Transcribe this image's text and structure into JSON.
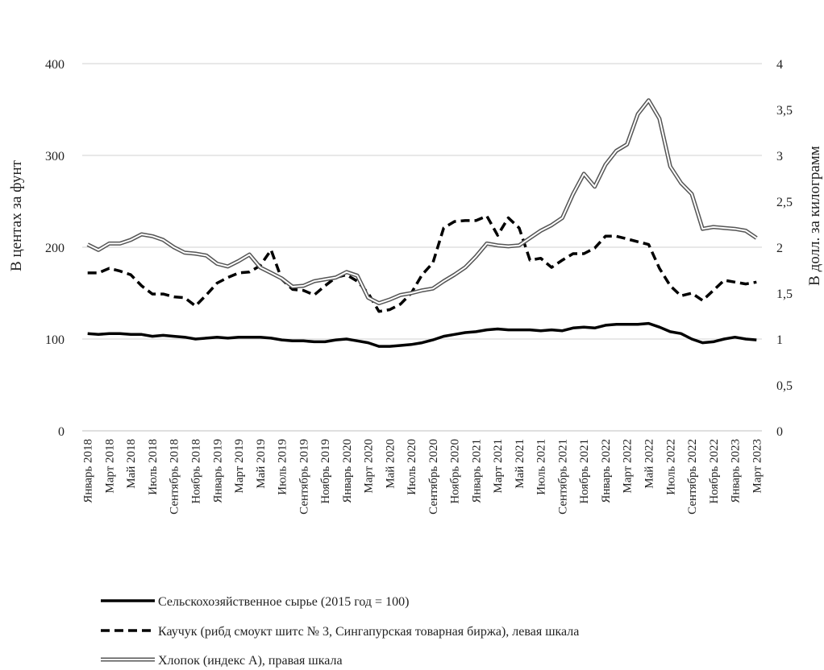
{
  "chart_data": {
    "type": "line",
    "xlabel": "",
    "ylabel": "В центах за фунт",
    "y2label": "В долл. за килограмм",
    "ylim": [
      0,
      400
    ],
    "y2lim": [
      0,
      4
    ],
    "grid": true,
    "legend_position": "bottom",
    "yticks": [
      "0",
      "100",
      "200",
      "300",
      "400"
    ],
    "y2ticks": [
      "0",
      "0,5",
      "1",
      "1,5",
      "2",
      "2,5",
      "3",
      "3,5",
      "4"
    ],
    "x": [
      "Январь 2018",
      "Февраль 2018",
      "Март 2018",
      "Апрель 2018",
      "Май 2018",
      "Июнь 2018",
      "Июль 2018",
      "Август 2018",
      "Сентябрь 2018",
      "Октябрь 2018",
      "Ноябрь 2018",
      "Декабрь 2018",
      "Январь 2019",
      "Февраль 2019",
      "Март 2019",
      "Апрель 2019",
      "Май 2019",
      "Июнь 2019",
      "Июль 2019",
      "Август 2019",
      "Сентябрь 2019",
      "Октябрь 2019",
      "Ноябрь 2019",
      "Декабрь 2019",
      "Январь 2020",
      "Февраль 2020",
      "Март 2020",
      "Апрель 2020",
      "Май 2020",
      "Июнь 2020",
      "Июль 2020",
      "Август 2020",
      "Сентябрь 2020",
      "Октябрь 2020",
      "Ноябрь 2020",
      "Декабрь 2020",
      "Январь 2021",
      "Февраль 2021",
      "Март 2021",
      "Апрель 2021",
      "Май 2021",
      "Июнь 2021",
      "Июль 2021",
      "Август 2021",
      "Сентябрь 2021",
      "Октябрь 2021",
      "Ноябрь 2021",
      "Декабрь 2021",
      "Январь 2022",
      "Февраль 2022",
      "Март 2022",
      "Апрель 2022",
      "Май 2022",
      "Июнь 2022",
      "Июль 2022",
      "Август 2022",
      "Сентябрь 2022",
      "Октябрь 2022",
      "Ноябрь 2022",
      "Декабрь 2022",
      "Январь 2023",
      "Февраль 2023",
      "Март 2023"
    ],
    "xtick_labels": [
      "Январь 2018",
      "Март 2018",
      "Май 2018",
      "Июль 2018",
      "Сентябрь 2018",
      "Ноябрь 2018",
      "Январь 2019",
      "Март 2019",
      "Май 2019",
      "Июль 2019",
      "Сентябрь 2019",
      "Ноябрь 2019",
      "Январь 2020",
      "Март 2020",
      "Май 2020",
      "Июль 2020",
      "Сентябрь 2020",
      "Ноябрь 2020",
      "Январь 2021",
      "Март 2021",
      "Май 2021",
      "Июль 2021",
      "Сентябрь 2021",
      "Ноябрь 2021",
      "Январь 2022",
      "Март 2022",
      "Май 2022",
      "Июль 2022",
      "Сентябрь 2022",
      "Ноябрь 2022",
      "Январь 2023",
      "Март 2023"
    ],
    "series": [
      {
        "name": "Сельскохозяйственное сырье (2015 год = 100)",
        "axis": "left",
        "style": "solid",
        "color": "#000000",
        "values": [
          106,
          105,
          106,
          106,
          105,
          105,
          103,
          104,
          103,
          102,
          100,
          101,
          102,
          101,
          102,
          102,
          102,
          101,
          99,
          98,
          98,
          97,
          97,
          99,
          100,
          98,
          96,
          92,
          92,
          93,
          94,
          96,
          99,
          103,
          105,
          107,
          108,
          110,
          111,
          110,
          110,
          110,
          109,
          110,
          109,
          112,
          113,
          112,
          115,
          116,
          116,
          116,
          117,
          113,
          108,
          106,
          100,
          96,
          97,
          100,
          102,
          100,
          99
        ]
      },
      {
        "name": "Каучук (рибд смоукт шитс № 3, Сингапурская товарная биржа), левая шкала",
        "axis": "left",
        "style": "dashed",
        "color": "#000000",
        "values": [
          172,
          172,
          177,
          174,
          170,
          158,
          149,
          149,
          146,
          145,
          136,
          148,
          161,
          167,
          172,
          173,
          180,
          197,
          165,
          154,
          153,
          148,
          158,
          167,
          170,
          163,
          150,
          130,
          132,
          138,
          150,
          170,
          183,
          221,
          228,
          229,
          229,
          234,
          213,
          232,
          221,
          186,
          188,
          178,
          186,
          193,
          193,
          199,
          212,
          212,
          209,
          206,
          203,
          177,
          158,
          147,
          150,
          142,
          153,
          164,
          162,
          160,
          162
        ]
      },
      {
        "name": "Хлопок (индекс A), правая шкала",
        "axis": "right",
        "style": "double",
        "color": "#555555",
        "values": [
          2.03,
          1.97,
          2.04,
          2.04,
          2.08,
          2.14,
          2.12,
          2.08,
          2.0,
          1.94,
          1.93,
          1.91,
          1.82,
          1.79,
          1.85,
          1.92,
          1.78,
          1.72,
          1.66,
          1.57,
          1.58,
          1.63,
          1.65,
          1.67,
          1.73,
          1.69,
          1.45,
          1.39,
          1.43,
          1.48,
          1.5,
          1.53,
          1.55,
          1.63,
          1.7,
          1.78,
          1.9,
          2.04,
          2.02,
          2.01,
          2.02,
          2.1,
          2.18,
          2.24,
          2.32,
          2.58,
          2.8,
          2.66,
          2.9,
          3.05,
          3.12,
          3.45,
          3.6,
          3.4,
          2.88,
          2.7,
          2.58,
          2.2,
          2.22,
          2.21,
          2.2,
          2.18,
          2.1
        ]
      }
    ]
  }
}
